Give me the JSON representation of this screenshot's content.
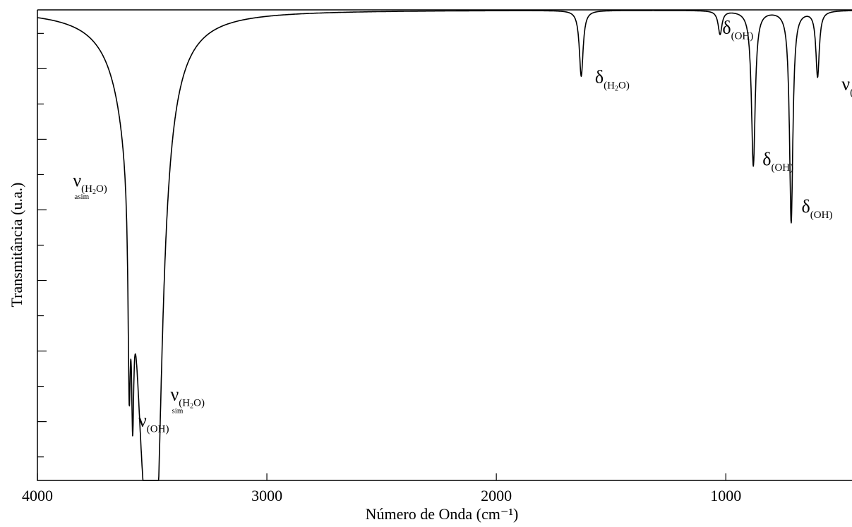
{
  "chart_data": {
    "type": "line",
    "xlabel": "Número de Onda (cm⁻¹)",
    "ylabel": "Transmitância (u.a.)",
    "xlim": [
      4000,
      450
    ],
    "ylim": [
      0,
      1
    ],
    "x_reversed": true,
    "x_ticks": [
      4000,
      3000,
      2000,
      1000
    ],
    "x_tick_labels": [
      "4000",
      "3000",
      "2000",
      "1000"
    ],
    "y_ticks": [
      0.05,
      0.125,
      0.2,
      0.275,
      0.35,
      0.425,
      0.5,
      0.575,
      0.65,
      0.725,
      0.8,
      0.875,
      0.95
    ],
    "y_major_ticks": [
      0.125,
      0.275,
      0.425,
      0.575,
      0.725,
      0.875
    ],
    "grid": false,
    "line_color": "#000000",
    "series": [
      {
        "baseline": 1.0,
        "peaks": [
          {
            "x": 3600,
            "depth": 0.38,
            "width": 6
          },
          {
            "x": 3585,
            "depth": 0.32,
            "width": 6
          },
          {
            "x": 3530,
            "depth": 0.9,
            "width": 60
          },
          {
            "x": 3480,
            "depth": 0.58,
            "width": 30
          },
          {
            "x": 1630,
            "depth": 0.14,
            "width": 10
          },
          {
            "x": 1025,
            "depth": 0.05,
            "width": 10
          },
          {
            "x": 880,
            "depth": 0.33,
            "width": 10
          },
          {
            "x": 715,
            "depth": 0.45,
            "width": 9
          },
          {
            "x": 600,
            "depth": 0.14,
            "width": 9
          }
        ]
      }
    ],
    "annotations": [
      {
        "main": "ν",
        "sub": "(H",
        "sub2": "2",
        "sub3": "O)",
        "under": "asim",
        "x": 3845,
        "y": 0.625
      },
      {
        "main": "ν",
        "sub": "(OH)",
        "x": 3560,
        "y": 0.115
      },
      {
        "main": "ν",
        "sub": "(H",
        "sub2": "2",
        "sub3": "O)",
        "under": "sim",
        "x": 3420,
        "y": 0.17
      },
      {
        "main": "δ",
        "sub": "(H",
        "sub2": "2",
        "sub3": "O)",
        "x": 1570,
        "y": 0.845
      },
      {
        "main": "δ",
        "sub": "(OH)",
        "x": 1015,
        "y": 0.95
      },
      {
        "main": "δ",
        "sub": "(OH)",
        "x": 840,
        "y": 0.67
      },
      {
        "main": "δ",
        "sub": "(OH)",
        "x": 670,
        "y": 0.57
      },
      {
        "main": "ν",
        "sub": "(Zn-Cl",
        "x": 495,
        "y": 0.83
      }
    ]
  }
}
